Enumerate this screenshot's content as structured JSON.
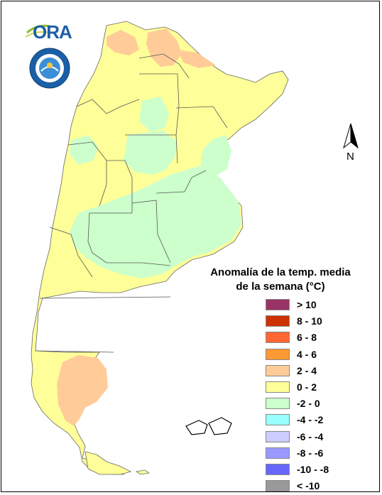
{
  "legend": {
    "title_line1": "Anomalía de la temp. media",
    "title_line2": "de la semana (°C)",
    "items": [
      {
        "label": "> 10",
        "color": "#993366"
      },
      {
        "label": "8 - 10",
        "color": "#cc3300"
      },
      {
        "label": "6 - 8",
        "color": "#ff6633"
      },
      {
        "label": "4 - 6",
        "color": "#ff9933"
      },
      {
        "label": "2 - 4",
        "color": "#ffcc99"
      },
      {
        "label": "0 - 2",
        "color": "#ffff99"
      },
      {
        "label": "-2 - 0",
        "color": "#ccffcc"
      },
      {
        "label": "-4 - -2",
        "color": "#99ffff"
      },
      {
        "label": "-6 - -4",
        "color": "#ccccff"
      },
      {
        "label": "-8 - -6",
        "color": "#9999ff"
      },
      {
        "label": "-10 - -8",
        "color": "#6666ff"
      },
      {
        "label": "< -10",
        "color": "#999999"
      }
    ]
  },
  "north_arrow": {
    "label": "N"
  },
  "logos": {
    "ora": "ORA"
  }
}
